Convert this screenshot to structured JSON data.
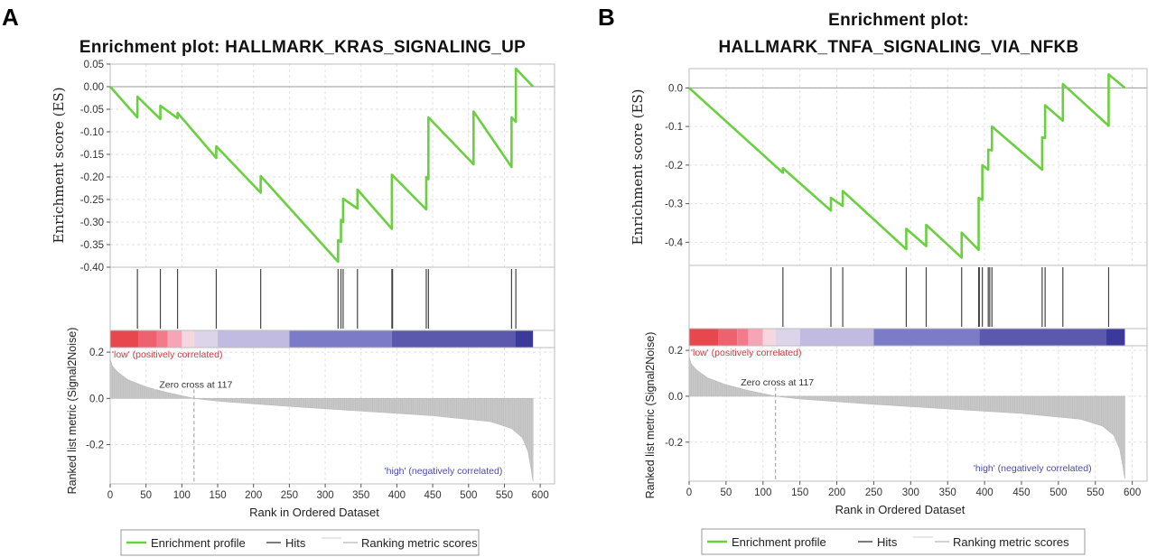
{
  "chart_data": [
    {
      "type": "line",
      "panel_label": "A",
      "title_lines": [
        "Enrichment plot: HALLMARK_KRAS_SIGNALING_UP"
      ],
      "es": {
        "ylabel": "Enrichment score (ES)",
        "ylim": [
          -0.4,
          0.05
        ],
        "ytick_labels": [
          "0.05",
          "0.00",
          "-0.05",
          "-0.10",
          "-0.15",
          "-0.20",
          "-0.25",
          "-0.30",
          "-0.35",
          "-0.40"
        ],
        "ytick_values": [
          0.05,
          0.0,
          -0.05,
          -0.1,
          -0.15,
          -0.2,
          -0.25,
          -0.3,
          -0.35,
          -0.4
        ],
        "profile": [
          [
            0,
            0.0
          ],
          [
            38,
            -0.068
          ],
          [
            38,
            -0.022
          ],
          [
            70,
            -0.072
          ],
          [
            70,
            -0.042
          ],
          [
            94,
            -0.07
          ],
          [
            94,
            -0.058
          ],
          [
            148,
            -0.158
          ],
          [
            148,
            -0.132
          ],
          [
            210,
            -0.235
          ],
          [
            210,
            -0.198
          ],
          [
            318,
            -0.388
          ],
          [
            318,
            -0.34
          ],
          [
            322,
            -0.344
          ],
          [
            322,
            -0.295
          ],
          [
            325,
            -0.3
          ],
          [
            325,
            -0.248
          ],
          [
            345,
            -0.27
          ],
          [
            345,
            -0.228
          ],
          [
            393,
            -0.315
          ],
          [
            393,
            -0.195
          ],
          [
            441,
            -0.272
          ],
          [
            441,
            -0.2
          ],
          [
            444,
            -0.205
          ],
          [
            444,
            -0.068
          ],
          [
            507,
            -0.172
          ],
          [
            507,
            -0.055
          ],
          [
            560,
            -0.178
          ],
          [
            560,
            -0.068
          ],
          [
            566,
            -0.078
          ],
          [
            566,
            0.04
          ],
          [
            590,
            0.0
          ]
        ]
      },
      "hits": [
        38,
        70,
        94,
        148,
        210,
        318,
        322,
        325,
        345,
        393,
        394,
        441,
        444,
        560,
        566
      ],
      "heatmap": {
        "segments": [
          [
            0,
            40,
            "#e8474e"
          ],
          [
            40,
            65,
            "#ee6270"
          ],
          [
            65,
            80,
            "#f27a8a"
          ],
          [
            80,
            100,
            "#f5a5b5"
          ],
          [
            100,
            117,
            "#f6d6df"
          ],
          [
            117,
            150,
            "#dcd5ea"
          ],
          [
            150,
            250,
            "#c2bbe1"
          ],
          [
            250,
            393,
            "#7b7bc8"
          ],
          [
            393,
            565,
            "#5b59ad"
          ],
          [
            565,
            590,
            "#3b3a9b"
          ]
        ],
        "low_label": "'low' (positively correlated)",
        "high_label": "'high' (negatively correlated)"
      },
      "ranked": {
        "ylabel": "Ranked list metric (Signal2Noise)",
        "ylim": [
          -0.37,
          0.22
        ],
        "ytick_labels": [
          "0.2",
          "0.0",
          "-0.2"
        ],
        "ytick_values": [
          0.2,
          0.0,
          -0.2
        ],
        "metric_curve": [
          [
            0,
            0.17
          ],
          [
            3,
            0.14
          ],
          [
            10,
            0.115
          ],
          [
            25,
            0.08
          ],
          [
            50,
            0.05
          ],
          [
            80,
            0.025
          ],
          [
            117,
            0.0
          ],
          [
            150,
            -0.012
          ],
          [
            250,
            -0.035
          ],
          [
            350,
            -0.055
          ],
          [
            450,
            -0.075
          ],
          [
            530,
            -0.1
          ],
          [
            560,
            -0.13
          ],
          [
            575,
            -0.17
          ],
          [
            583,
            -0.23
          ],
          [
            587,
            -0.3
          ],
          [
            590,
            -0.36
          ]
        ],
        "zero_cross": 117,
        "zero_cross_label": "Zero cross at 117"
      },
      "xaxis": {
        "xlabel": "Rank in Ordered Dataset",
        "xlim": [
          0,
          620
        ],
        "xtick_labels": [
          "0",
          "50",
          "100",
          "150",
          "200",
          "250",
          "300",
          "350",
          "400",
          "450",
          "500",
          "550",
          "600"
        ],
        "xtick_values": [
          0,
          50,
          100,
          150,
          200,
          250,
          300,
          350,
          400,
          450,
          500,
          550,
          600
        ]
      },
      "legend": [
        "Enrichment profile",
        "Hits",
        "Ranking metric scores"
      ],
      "colors": {
        "profile": "#6ad040",
        "hits": "#444444",
        "ranked": "#c8c8c8"
      }
    },
    {
      "type": "line",
      "panel_label": "B",
      "title_lines": [
        "Enrichment plot:",
        "HALLMARK_TNFA_SIGNALING_VIA_NFKB"
      ],
      "es": {
        "ylabel": "Enrichment score (ES)",
        "ylim": [
          -0.46,
          0.05
        ],
        "ytick_labels": [
          "0.0",
          "-0.1",
          "-0.2",
          "-0.3",
          "-0.4"
        ],
        "ytick_values": [
          0.0,
          -0.1,
          -0.2,
          -0.3,
          -0.4
        ],
        "profile": [
          [
            0,
            0.0
          ],
          [
            127,
            -0.22
          ],
          [
            127,
            -0.208
          ],
          [
            192,
            -0.318
          ],
          [
            192,
            -0.285
          ],
          [
            208,
            -0.306
          ],
          [
            208,
            -0.267
          ],
          [
            294,
            -0.418
          ],
          [
            294,
            -0.365
          ],
          [
            321,
            -0.41
          ],
          [
            321,
            -0.355
          ],
          [
            369,
            -0.44
          ],
          [
            369,
            -0.375
          ],
          [
            392,
            -0.42
          ],
          [
            392,
            -0.285
          ],
          [
            397,
            -0.29
          ],
          [
            397,
            -0.2
          ],
          [
            405,
            -0.212
          ],
          [
            405,
            -0.16
          ],
          [
            410,
            -0.162
          ],
          [
            410,
            -0.1
          ],
          [
            478,
            -0.212
          ],
          [
            478,
            -0.128
          ],
          [
            482,
            -0.13
          ],
          [
            482,
            -0.045
          ],
          [
            506,
            -0.085
          ],
          [
            506,
            0.01
          ],
          [
            568,
            -0.098
          ],
          [
            568,
            0.035
          ],
          [
            590,
            0.0
          ]
        ]
      },
      "hits": [
        127,
        192,
        208,
        294,
        321,
        369,
        392,
        393,
        397,
        405,
        407,
        410,
        478,
        482,
        506,
        568
      ],
      "heatmap": {
        "segments": [
          [
            0,
            40,
            "#e8474e"
          ],
          [
            40,
            65,
            "#ee6270"
          ],
          [
            65,
            80,
            "#f27a8a"
          ],
          [
            80,
            100,
            "#f5a5b5"
          ],
          [
            100,
            117,
            "#f6d6df"
          ],
          [
            117,
            150,
            "#dcd5ea"
          ],
          [
            150,
            250,
            "#c2bbe1"
          ],
          [
            250,
            393,
            "#7b7bc8"
          ],
          [
            393,
            565,
            "#5b59ad"
          ],
          [
            565,
            590,
            "#3b3a9b"
          ]
        ],
        "low_label": "'low' (positively correlated)",
        "high_label": "'high' (negatively correlated)"
      },
      "ranked": {
        "ylabel": "Ranked list metric (Signal2Noise)",
        "ylim": [
          -0.37,
          0.22
        ],
        "ytick_labels": [
          "0.2",
          "0.0",
          "-0.2"
        ],
        "ytick_values": [
          0.2,
          0.0,
          -0.2
        ],
        "metric_curve": [
          [
            0,
            0.17
          ],
          [
            3,
            0.14
          ],
          [
            10,
            0.115
          ],
          [
            25,
            0.08
          ],
          [
            50,
            0.05
          ],
          [
            80,
            0.025
          ],
          [
            117,
            0.0
          ],
          [
            150,
            -0.012
          ],
          [
            250,
            -0.035
          ],
          [
            350,
            -0.055
          ],
          [
            450,
            -0.075
          ],
          [
            530,
            -0.1
          ],
          [
            560,
            -0.13
          ],
          [
            575,
            -0.17
          ],
          [
            583,
            -0.23
          ],
          [
            587,
            -0.3
          ],
          [
            590,
            -0.36
          ]
        ],
        "zero_cross": 117,
        "zero_cross_label": "Zero cross at 117"
      },
      "xaxis": {
        "xlabel": "Rank in Ordered Dataset",
        "xlim": [
          0,
          620
        ],
        "xtick_labels": [
          "0",
          "50",
          "100",
          "150",
          "200",
          "250",
          "300",
          "350",
          "400",
          "450",
          "500",
          "550",
          "600"
        ],
        "xtick_values": [
          0,
          50,
          100,
          150,
          200,
          250,
          300,
          350,
          400,
          450,
          500,
          550,
          600
        ]
      },
      "legend": [
        "Enrichment profile",
        "Hits",
        "Ranking metric scores"
      ],
      "colors": {
        "profile": "#6ad040",
        "hits": "#444444",
        "ranked": "#c8c8c8"
      }
    }
  ]
}
